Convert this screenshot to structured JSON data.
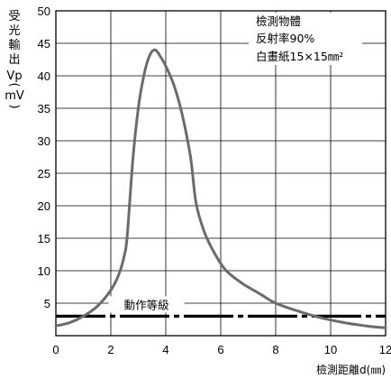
{
  "chart_data": {
    "type": "line",
    "title": "",
    "xlabel": "檢測距離d(㎜)",
    "ylabel_chars": [
      "受",
      "光",
      "輸",
      "出",
      "Vp",
      "(",
      "mV",
      ")"
    ],
    "xlim": [
      0,
      12
    ],
    "ylim": [
      0,
      50
    ],
    "xticks": [
      0,
      2,
      4,
      6,
      8,
      10,
      12
    ],
    "yticks": [
      5,
      10,
      15,
      20,
      25,
      30,
      35,
      40,
      45,
      50
    ],
    "grid": true,
    "series": [
      {
        "x": [
          0,
          0.5,
          1.0,
          1.5,
          2.0,
          2.3,
          2.5,
          2.6,
          2.8,
          3.0,
          3.2,
          3.4,
          3.6,
          3.8,
          4.0,
          4.3,
          4.6,
          4.9,
          5.1,
          5.4,
          5.8,
          6.2,
          6.8,
          7.4,
          8.0,
          8.8,
          9.6,
          10.5,
          11.3,
          12.0
        ],
        "y": [
          1.5,
          2.0,
          3.0,
          4.5,
          7.0,
          9.5,
          12.5,
          15.5,
          27.0,
          35.0,
          40.0,
          43.0,
          44.0,
          43.0,
          41.5,
          38.5,
          34.0,
          27.5,
          20.5,
          16.0,
          12.5,
          10.0,
          8.0,
          6.5,
          5.0,
          3.8,
          2.8,
          2.0,
          1.5,
          1.2
        ],
        "color": "#6b6b6b"
      }
    ],
    "threshold": {
      "label": "動作等級",
      "y": 3,
      "color": "#000000"
    },
    "annotation": {
      "lines": [
        "檢測物體",
        "反射率90%",
        "白畫紙15×15㎜²"
      ]
    }
  }
}
